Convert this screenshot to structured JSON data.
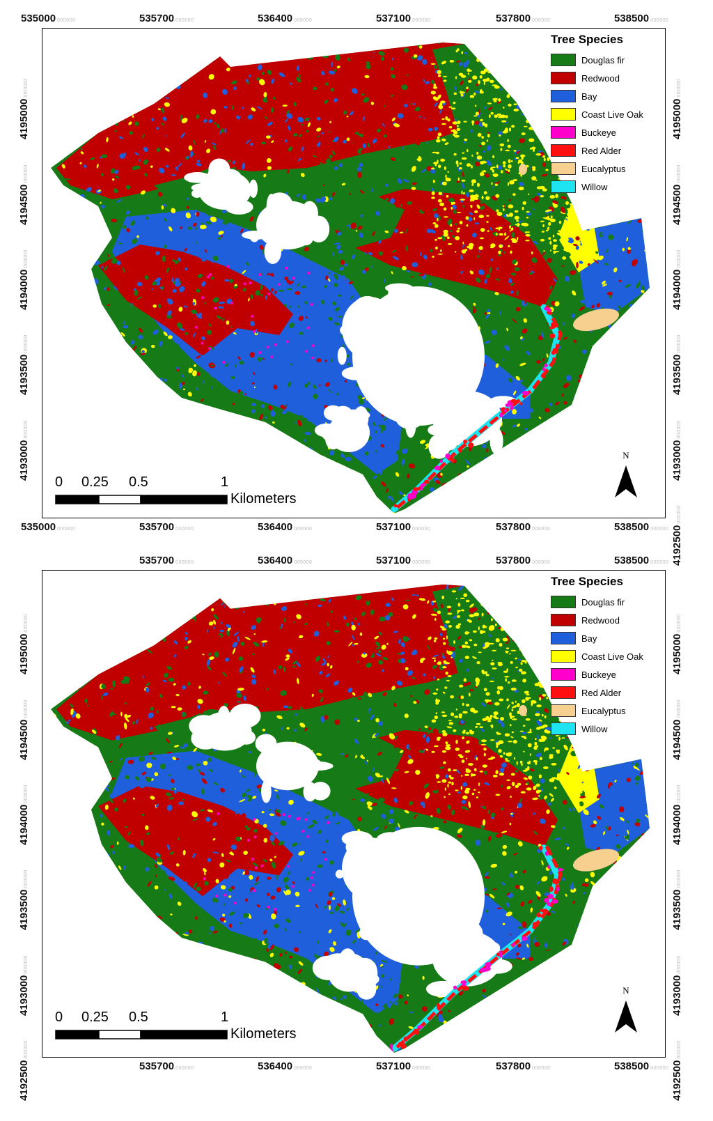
{
  "panels": [
    {
      "id": "top",
      "x_ticks_top": [
        {
          "label": "535000",
          "sub": "000000"
        },
        {
          "label": "535700",
          "sub": "000000"
        },
        {
          "label": "536400",
          "sub": "000000"
        },
        {
          "label": "537100",
          "sub": "000000"
        },
        {
          "label": "537800",
          "sub": "000000"
        },
        {
          "label": "538500",
          "sub": "000000"
        }
      ],
      "x_ticks_bottom": [
        {
          "label": "535000",
          "sub": "000000"
        },
        {
          "label": "535700",
          "sub": "000000"
        },
        {
          "label": "536400",
          "sub": "000000"
        },
        {
          "label": "537100",
          "sub": "000000"
        },
        {
          "label": "537800",
          "sub": "000000"
        },
        {
          "label": "538500",
          "sub": "000000"
        }
      ],
      "y_ticks_left": [
        {
          "label": "4195000",
          "sub": "000000"
        },
        {
          "label": "4194500",
          "sub": "000000"
        },
        {
          "label": "4194000",
          "sub": "000000"
        },
        {
          "label": "4193500",
          "sub": "000000"
        },
        {
          "label": "4193000",
          "sub": "000000"
        }
      ],
      "y_ticks_right": [
        {
          "label": "4195000",
          "sub": "000000"
        },
        {
          "label": "4194500",
          "sub": "000000"
        },
        {
          "label": "4194000",
          "sub": "000000"
        },
        {
          "label": "4193500",
          "sub": "000000"
        },
        {
          "label": "4193000",
          "sub": "000000"
        },
        {
          "label": "4192500",
          "sub": "000000"
        }
      ]
    },
    {
      "id": "bottom",
      "x_ticks_top": [
        {
          "label": "535700",
          "sub": "000000"
        },
        {
          "label": "536400",
          "sub": "000000"
        },
        {
          "label": "537100",
          "sub": "000000"
        },
        {
          "label": "537800",
          "sub": "000000"
        },
        {
          "label": "538500",
          "sub": "000000"
        }
      ],
      "x_ticks_bottom": [
        {
          "label": "535700",
          "sub": "000000"
        },
        {
          "label": "536400",
          "sub": "000000"
        },
        {
          "label": "537100",
          "sub": "000000"
        },
        {
          "label": "537800",
          "sub": "000000"
        },
        {
          "label": "538500",
          "sub": "000000"
        }
      ],
      "y_ticks_left": [
        {
          "label": "4195000",
          "sub": "000000"
        },
        {
          "label": "4194500",
          "sub": "000000"
        },
        {
          "label": "4194000",
          "sub": "000000"
        },
        {
          "label": "4193500",
          "sub": "000000"
        },
        {
          "label": "4193000",
          "sub": "000000"
        },
        {
          "label": "4192500",
          "sub": "000000"
        }
      ],
      "y_ticks_right": [
        {
          "label": "4195000",
          "sub": "000000"
        },
        {
          "label": "4194500",
          "sub": "000000"
        },
        {
          "label": "4194000",
          "sub": "000000"
        },
        {
          "label": "4193500",
          "sub": "000000"
        },
        {
          "label": "4193000",
          "sub": "000000"
        },
        {
          "label": "4192500",
          "sub": "000000"
        }
      ]
    }
  ],
  "legend": {
    "title": "Tree Species",
    "items": [
      {
        "label": "Douglas fir",
        "color": "#167a16"
      },
      {
        "label": "Redwood",
        "color": "#c00000"
      },
      {
        "label": "Bay",
        "color": "#1f5fdc"
      },
      {
        "label": "Coast Live Oak",
        "color": "#ffff00"
      },
      {
        "label": "Buckeye",
        "color": "#ff00cc"
      },
      {
        "label": "Red Alder",
        "color": "#ff1010"
      },
      {
        "label": "Eucalyptus",
        "color": "#f7cf8f"
      },
      {
        "label": "Willow",
        "color": "#1ee3f0"
      }
    ]
  },
  "scale_bar": {
    "labels": [
      "0",
      "0.25",
      "0.5",
      "1"
    ],
    "unit": "Kilometers"
  },
  "north_arrow": {
    "label": "N"
  }
}
